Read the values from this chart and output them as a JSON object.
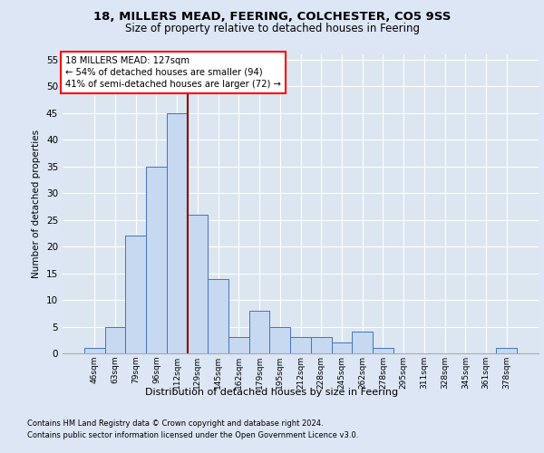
{
  "title1": "18, MILLERS MEAD, FEERING, COLCHESTER, CO5 9SS",
  "title2": "Size of property relative to detached houses in Feering",
  "xlabel": "Distribution of detached houses by size in Feering",
  "ylabel": "Number of detached properties",
  "categories": [
    "46sqm",
    "63sqm",
    "79sqm",
    "96sqm",
    "112sqm",
    "129sqm",
    "145sqm",
    "162sqm",
    "179sqm",
    "195sqm",
    "212sqm",
    "228sqm",
    "245sqm",
    "262sqm",
    "278sqm",
    "295sqm",
    "311sqm",
    "328sqm",
    "345sqm",
    "361sqm",
    "378sqm"
  ],
  "values": [
    1,
    5,
    22,
    35,
    45,
    26,
    14,
    3,
    8,
    5,
    3,
    3,
    2,
    4,
    1,
    0,
    0,
    0,
    0,
    0,
    1
  ],
  "bar_color": "#c6d9f0",
  "bar_edge_color": "#4472c4",
  "vline_x": 4.5,
  "marker_label1": "18 MILLERS MEAD: 127sqm",
  "marker_label2": "← 54% of detached houses are smaller (94)",
  "marker_label3": "41% of semi-detached houses are larger (72) →",
  "ylim": [
    0,
    56
  ],
  "yticks": [
    0,
    5,
    10,
    15,
    20,
    25,
    30,
    35,
    40,
    45,
    50,
    55
  ],
  "vline_color": "#8b0000",
  "footer1": "Contains HM Land Registry data © Crown copyright and database right 2024.",
  "footer2": "Contains public sector information licensed under the Open Government Licence v3.0.",
  "bg_color": "#dce6f5",
  "plot_bg_color": "#dce6f1"
}
